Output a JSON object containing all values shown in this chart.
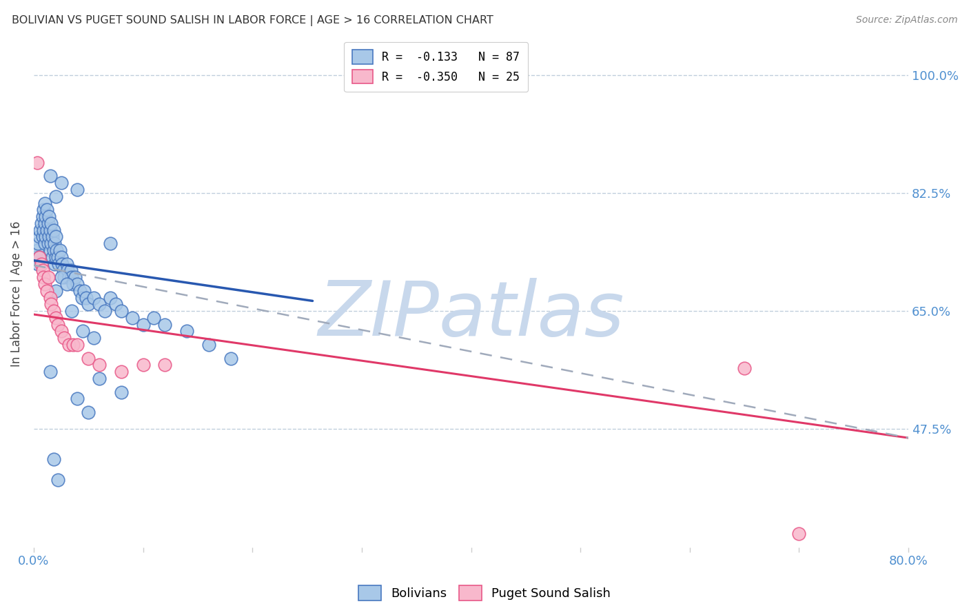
{
  "title": "BOLIVIAN VS PUGET SOUND SALISH IN LABOR FORCE | AGE > 16 CORRELATION CHART",
  "source": "Source: ZipAtlas.com",
  "ylabel": "In Labor Force | Age > 16",
  "xlim": [
    0.0,
    0.8
  ],
  "ylim": [
    0.3,
    1.05
  ],
  "xticks": [
    0.0,
    0.1,
    0.2,
    0.3,
    0.4,
    0.5,
    0.6,
    0.7,
    0.8
  ],
  "xtick_labels": [
    "0.0%",
    "",
    "",
    "",
    "",
    "",
    "",
    "",
    "80.0%"
  ],
  "ytick_right_labels": [
    "47.5%",
    "65.0%",
    "82.5%",
    "100.0%"
  ],
  "ytick_right_values": [
    0.475,
    0.65,
    0.825,
    1.0
  ],
  "blue_color": "#A8C8E8",
  "pink_color": "#F8B8CC",
  "blue_edge_color": "#4878C0",
  "pink_edge_color": "#E85888",
  "blue_line_color": "#2858B0",
  "pink_line_color": "#E03868",
  "dash_line_color": "#A0AABB",
  "watermark": "ZIPatlas",
  "watermark_color": "#C8D8EC",
  "legend_blue": "R =  -0.133   N = 87",
  "legend_pink": "R =  -0.350   N = 25",
  "blue_trend_x": [
    0.0,
    0.255
  ],
  "blue_trend_y": [
    0.725,
    0.665
  ],
  "pink_trend_x": [
    0.0,
    0.8
  ],
  "pink_trend_y": [
    0.645,
    0.462
  ],
  "dash_trend_x": [
    0.0,
    0.8
  ],
  "dash_trend_y": [
    0.718,
    0.462
  ],
  "blue_x": [
    0.002,
    0.003,
    0.004,
    0.004,
    0.005,
    0.005,
    0.006,
    0.007,
    0.008,
    0.008,
    0.009,
    0.009,
    0.01,
    0.01,
    0.01,
    0.011,
    0.011,
    0.012,
    0.012,
    0.013,
    0.013,
    0.014,
    0.014,
    0.015,
    0.015,
    0.016,
    0.016,
    0.017,
    0.017,
    0.018,
    0.018,
    0.019,
    0.019,
    0.02,
    0.02,
    0.021,
    0.022,
    0.023,
    0.024,
    0.025,
    0.026,
    0.027,
    0.028,
    0.03,
    0.031,
    0.032,
    0.034,
    0.035,
    0.036,
    0.038,
    0.04,
    0.042,
    0.044,
    0.046,
    0.048,
    0.05,
    0.055,
    0.06,
    0.065,
    0.07,
    0.075,
    0.08,
    0.09,
    0.1,
    0.11,
    0.12,
    0.14,
    0.16,
    0.18,
    0.02,
    0.025,
    0.03,
    0.015,
    0.04,
    0.05,
    0.06,
    0.08,
    0.035,
    0.045,
    0.055,
    0.015,
    0.025,
    0.04,
    0.02,
    0.07,
    0.018,
    0.022
  ],
  "blue_y": [
    0.73,
    0.74,
    0.75,
    0.72,
    0.76,
    0.73,
    0.77,
    0.78,
    0.79,
    0.76,
    0.8,
    0.77,
    0.81,
    0.78,
    0.75,
    0.79,
    0.76,
    0.8,
    0.77,
    0.78,
    0.75,
    0.79,
    0.76,
    0.77,
    0.74,
    0.78,
    0.75,
    0.76,
    0.73,
    0.77,
    0.74,
    0.75,
    0.72,
    0.76,
    0.73,
    0.74,
    0.73,
    0.72,
    0.74,
    0.73,
    0.72,
    0.71,
    0.7,
    0.72,
    0.71,
    0.7,
    0.71,
    0.7,
    0.69,
    0.7,
    0.69,
    0.68,
    0.67,
    0.68,
    0.67,
    0.66,
    0.67,
    0.66,
    0.65,
    0.67,
    0.66,
    0.65,
    0.64,
    0.63,
    0.64,
    0.63,
    0.62,
    0.6,
    0.58,
    0.68,
    0.7,
    0.69,
    0.56,
    0.52,
    0.5,
    0.55,
    0.53,
    0.65,
    0.62,
    0.61,
    0.85,
    0.84,
    0.83,
    0.82,
    0.75,
    0.43,
    0.4
  ],
  "pink_x": [
    0.003,
    0.005,
    0.007,
    0.008,
    0.009,
    0.01,
    0.012,
    0.013,
    0.015,
    0.016,
    0.018,
    0.02,
    0.022,
    0.025,
    0.028,
    0.032,
    0.036,
    0.04,
    0.05,
    0.06,
    0.08,
    0.1,
    0.12,
    0.65,
    0.7
  ],
  "pink_y": [
    0.87,
    0.73,
    0.72,
    0.71,
    0.7,
    0.69,
    0.68,
    0.7,
    0.67,
    0.66,
    0.65,
    0.64,
    0.63,
    0.62,
    0.61,
    0.6,
    0.6,
    0.6,
    0.58,
    0.57,
    0.56,
    0.57,
    0.57,
    0.565,
    0.32
  ]
}
